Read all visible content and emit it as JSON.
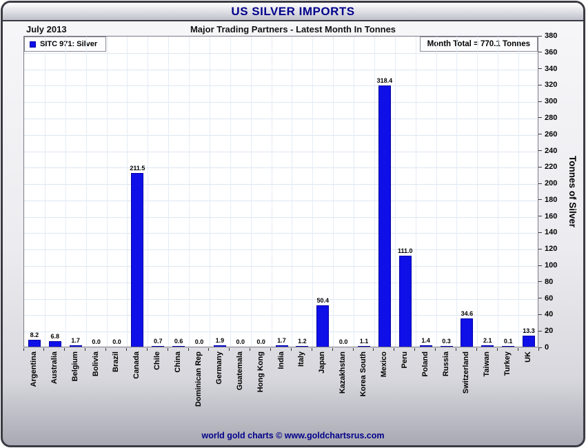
{
  "title_bar": {
    "title": "US SILVER IMPORTS"
  },
  "header": {
    "period": "July 2013",
    "subtitle": "Major Trading Partners - Latest Month In Tonnes"
  },
  "legend": {
    "label": "SITC 971: Silver"
  },
  "annotations": {
    "month_total": "Month Total = 770.1 Tonnes"
  },
  "footer": {
    "credit": "world gold charts © www.goldchartsrus.com"
  },
  "chart_data": {
    "type": "bar",
    "title": "US SILVER IMPORTS",
    "subtitle": "Major Trading Partners - Latest Month In Tonnes",
    "period": "July 2013",
    "series_name": "SITC 971: Silver",
    "month_total": 770.1,
    "categories": [
      "Argentina",
      "Australia",
      "Belgium",
      "Bolivia",
      "Brazil",
      "Canada",
      "Chile",
      "China",
      "Dominican Rep",
      "Germany",
      "Guatemala",
      "Hong Kong",
      "India",
      "Italy",
      "Japan",
      "Kazakhstan",
      "Korea South",
      "Mexico",
      "Peru",
      "Poland",
      "Russia",
      "Switzerland",
      "Taiwan",
      "Turkey",
      "UK"
    ],
    "values": [
      8.2,
      6.8,
      1.7,
      0.0,
      0.0,
      211.5,
      0.7,
      0.6,
      0.0,
      1.9,
      0.0,
      0.0,
      1.7,
      1.2,
      50.4,
      0.0,
      1.1,
      318.4,
      111.0,
      1.4,
      0.3,
      34.6,
      2.1,
      0.1,
      13.3
    ],
    "xlabel": "",
    "ylabel": "Tonnes of Silver",
    "ylim": [
      0,
      380
    ],
    "ytick_step": 20,
    "yaxis_side": "right",
    "grid": true,
    "legend_position": "top-left",
    "bar_color": "#0f0fe8",
    "bar_edge_color": "#0000a8",
    "grid_color": "#dce6f2",
    "title_color": "#00008B"
  }
}
